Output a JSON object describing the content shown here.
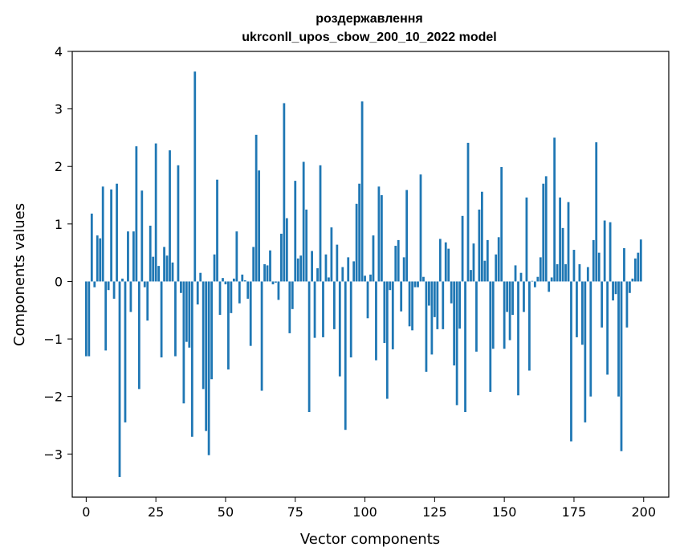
{
  "chart_data": {
    "type": "bar",
    "title_line1": "роздержавлення",
    "title_line2": "ukrconll_upos_cbow_200_10_2022 model",
    "xlabel": "Vector components",
    "ylabel": "Components values",
    "xlim": [
      -5,
      209
    ],
    "ylim": [
      -3.75,
      4
    ],
    "xticks": [
      0,
      25,
      50,
      75,
      100,
      125,
      150,
      175,
      200
    ],
    "yticks": [
      -3,
      -2,
      -1,
      0,
      1,
      2,
      3,
      4
    ],
    "color": "#1f77b4",
    "values": [
      -1.3,
      -1.3,
      1.18,
      -0.1,
      0.8,
      0.75,
      1.65,
      -1.2,
      -0.15,
      1.6,
      -0.3,
      1.7,
      -3.4,
      0.05,
      -2.45,
      0.87,
      -0.53,
      0.87,
      2.35,
      -1.87,
      1.58,
      -0.1,
      -0.68,
      0.97,
      0.43,
      2.4,
      0.27,
      -1.32,
      0.6,
      0.45,
      2.28,
      0.33,
      -1.3,
      2.02,
      -0.2,
      -2.12,
      -1.05,
      -1.15,
      -2.7,
      3.65,
      -0.4,
      0.15,
      -1.87,
      -2.6,
      -3.02,
      -1.7,
      0.47,
      1.77,
      -0.58,
      0.06,
      -0.05,
      -1.53,
      -0.55,
      0.05,
      0.87,
      -0.38,
      0.12,
      0.02,
      -0.3,
      -1.12,
      0.6,
      2.55,
      1.93,
      -1.9,
      0.3,
      0.28,
      0.54,
      -0.05,
      -0.02,
      -0.32,
      0.83,
      3.1,
      1.1,
      -0.9,
      -0.48,
      1.75,
      0.4,
      0.45,
      2.08,
      1.25,
      -2.27,
      0.53,
      -0.98,
      0.23,
      2.02,
      -0.97,
      0.47,
      0.07,
      0.94,
      -0.83,
      0.64,
      -1.65,
      0.25,
      -2.58,
      0.42,
      -1.32,
      0.35,
      1.35,
      1.7,
      3.13,
      0.1,
      -0.64,
      0.12,
      0.8,
      -1.37,
      1.65,
      1.5,
      -1.07,
      -2.04,
      -0.15,
      -1.18,
      0.62,
      0.72,
      -0.52,
      0.42,
      1.59,
      -0.78,
      -0.85,
      -0.1,
      -0.1,
      1.86,
      0.08,
      -1.57,
      -0.42,
      -1.27,
      -0.62,
      -0.83,
      0.74,
      -0.83,
      0.68,
      0.57,
      -0.38,
      -1.46,
      -2.15,
      -0.82,
      1.14,
      -2.27,
      2.41,
      0.2,
      0.66,
      -1.22,
      1.25,
      1.56,
      0.36,
      0.72,
      -1.92,
      -1.17,
      0.47,
      0.77,
      1.99,
      -1.17,
      -0.53,
      -1.02,
      -0.58,
      0.28,
      -1.98,
      0.15,
      -0.53,
      1.46,
      -1.55,
      0.01,
      -0.1,
      0.08,
      0.42,
      1.7,
      1.83,
      -0.18,
      0.07,
      2.5,
      0.3,
      1.46,
      0.93,
      0.3,
      1.38,
      -2.78,
      0.55,
      -0.97,
      0.3,
      -1.1,
      -2.45,
      0.25,
      -2.0,
      0.72,
      2.42,
      0.5,
      -0.8,
      1.06,
      -1.62,
      1.03,
      -0.33,
      -0.22,
      -2.0,
      -2.95,
      0.58,
      -0.8,
      -0.2,
      0.05,
      0.4,
      0.5,
      0.73
    ]
  }
}
